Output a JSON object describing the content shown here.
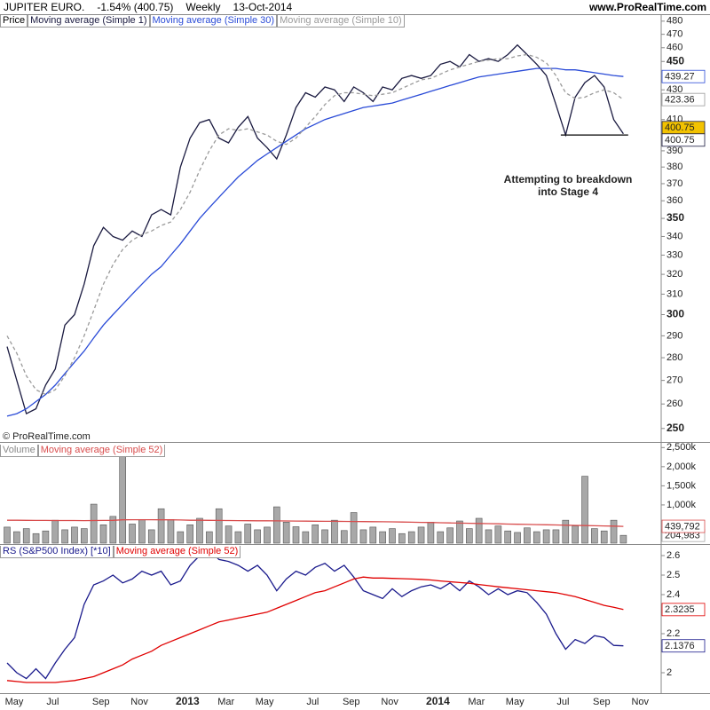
{
  "chart_data": [
    {
      "type": "line",
      "title": "JUPITER EURO.",
      "subtitle": "-1.54% (400.75)",
      "period": "Weekly",
      "date": "13-Oct-2014",
      "source": "www.ProRealTime.com",
      "panel_label": "Price",
      "copyright": "© ProRealTime.com",
      "annotation": [
        "Attempting to breakdown",
        "into Stage 4"
      ],
      "support": 400,
      "log_scale": true,
      "ylim": [
        245,
        484
      ],
      "yticks": [
        250,
        260,
        270,
        280,
        290,
        300,
        310,
        320,
        330,
        340,
        350,
        360,
        370,
        380,
        390,
        410,
        430,
        450,
        460,
        470,
        480
      ],
      "series": [
        {
          "name": "Moving average (Simple 1)",
          "color": "#1a1a40",
          "values": [
            285,
            270,
            256,
            258,
            268,
            275,
            295,
            300,
            315,
            335,
            345,
            340,
            338,
            343,
            340,
            352,
            355,
            352,
            380,
            398,
            408,
            410,
            398,
            395,
            405,
            412,
            398,
            392,
            385,
            400,
            418,
            428,
            425,
            432,
            430,
            422,
            432,
            428,
            422,
            432,
            430,
            438,
            440,
            438,
            440,
            448,
            450,
            446,
            455,
            450,
            452,
            450,
            455,
            462,
            455,
            448,
            440,
            420,
            400,
            425,
            435,
            440,
            432,
            410,
            400.75,
            null
          ]
        },
        {
          "name": "Moving average (Simple 30)",
          "color": "#2a4bd7",
          "values": [
            255,
            256,
            258,
            261,
            264,
            268,
            273,
            278,
            283,
            289,
            295,
            300,
            305,
            310,
            315,
            320,
            324,
            330,
            336,
            343,
            350,
            356,
            362,
            368,
            374,
            379,
            384,
            388,
            392,
            396,
            400,
            404,
            407,
            410,
            412,
            414,
            416,
            418,
            419,
            420,
            421,
            423,
            425,
            427,
            429,
            431,
            433,
            435,
            437,
            439,
            440,
            441,
            442,
            443,
            444,
            445,
            445,
            445,
            444,
            444,
            443,
            442,
            441,
            440,
            439.27,
            null
          ]
        },
        {
          "name": "Moving average (Simple 10)",
          "color": "#9a9a9a",
          "dash": true,
          "values": [
            290,
            282,
            272,
            266,
            264,
            266,
            272,
            280,
            290,
            302,
            315,
            325,
            333,
            338,
            341,
            343,
            346,
            348,
            355,
            365,
            378,
            390,
            400,
            404,
            403,
            404,
            402,
            400,
            396,
            394,
            398,
            405,
            412,
            420,
            426,
            428,
            428,
            427,
            426,
            427,
            428,
            431,
            434,
            437,
            438,
            441,
            444,
            446,
            448,
            450,
            451,
            452,
            452,
            454,
            455,
            453,
            449,
            440,
            428,
            424,
            425,
            428,
            430,
            428,
            423.36,
            null
          ]
        }
      ]
    },
    {
      "type": "bar",
      "panel_label": "Volume",
      "ylim": [
        0,
        2600000
      ],
      "yticks": [
        {
          "value": 1000000,
          "label": "1,000k"
        },
        {
          "value": 1500000,
          "label": "1,500k"
        },
        {
          "value": 2000000,
          "label": "2,000k"
        },
        {
          "value": 2500000,
          "label": "2,500k"
        }
      ],
      "series": [
        {
          "name": "Volume",
          "color": "#a8a8a8",
          "last_label": "204,983",
          "values": [
            420000,
            300000,
            380000,
            250000,
            320000,
            600000,
            350000,
            420000,
            380000,
            1020000,
            480000,
            700000,
            2550000,
            500000,
            620000,
            350000,
            900000,
            620000,
            300000,
            480000,
            650000,
            300000,
            900000,
            450000,
            300000,
            500000,
            350000,
            420000,
            950000,
            550000,
            430000,
            300000,
            480000,
            350000,
            600000,
            330000,
            800000,
            350000,
            420000,
            300000,
            380000,
            250000,
            300000,
            420000,
            550000,
            300000,
            400000,
            580000,
            380000,
            650000,
            350000,
            450000,
            320000,
            280000,
            400000,
            300000,
            350000,
            350000,
            600000,
            450000,
            1750000,
            380000,
            320000,
            600000,
            204983,
            null
          ]
        },
        {
          "name": "Moving average (Simple 52)",
          "color": "#d84c4c",
          "last_label": "439,792",
          "values": [
            600000,
            598000,
            596000,
            595000,
            594000,
            593000,
            592000,
            591000,
            590000,
            592000,
            594000,
            596000,
            610000,
            612000,
            613000,
            612000,
            611000,
            610000,
            605000,
            600000,
            598000,
            596000,
            594000,
            592000,
            590000,
            588000,
            586000,
            584000,
            582000,
            580000,
            578000,
            576000,
            574000,
            572000,
            570000,
            568000,
            566000,
            564000,
            562000,
            560000,
            556000,
            552000,
            548000,
            544000,
            540000,
            535000,
            530000,
            525000,
            520000,
            515000,
            510000,
            505000,
            500000,
            495000,
            490000,
            485000,
            480000,
            475000,
            470000,
            465000,
            460000,
            455000,
            450000,
            445000,
            439792,
            null
          ]
        }
      ]
    },
    {
      "type": "line",
      "ylim": [
        1.9,
        2.65
      ],
      "yticks": [
        2,
        2.2,
        2.4,
        2.5,
        2.6
      ],
      "categories": [
        "May",
        null,
        null,
        null,
        "Jul",
        null,
        null,
        null,
        null,
        "Sep",
        null,
        null,
        null,
        "Nov",
        null,
        null,
        null,
        null,
        "2013",
        null,
        null,
        null,
        "Mar",
        null,
        null,
        null,
        "May",
        null,
        null,
        null,
        null,
        "Jul",
        null,
        null,
        null,
        "Sep",
        null,
        null,
        null,
        "Nov",
        null,
        null,
        null,
        null,
        "2014",
        null,
        null,
        null,
        "Mar",
        null,
        null,
        null,
        "May",
        null,
        null,
        null,
        null,
        "Jul",
        null,
        null,
        null,
        "Sep",
        null,
        null,
        null,
        "Nov"
      ],
      "series": [
        {
          "name": "RS (S&P500 Index) [*10]",
          "color": "#1a1a8c",
          "values": [
            2.05,
            2.0,
            1.97,
            2.02,
            1.97,
            2.05,
            2.12,
            2.18,
            2.35,
            2.45,
            2.47,
            2.5,
            2.46,
            2.48,
            2.52,
            2.5,
            2.52,
            2.45,
            2.47,
            2.55,
            2.6,
            2.63,
            2.58,
            2.57,
            2.55,
            2.52,
            2.55,
            2.5,
            2.42,
            2.48,
            2.52,
            2.5,
            2.54,
            2.56,
            2.52,
            2.55,
            2.49,
            2.42,
            2.4,
            2.38,
            2.43,
            2.39,
            2.42,
            2.44,
            2.45,
            2.43,
            2.46,
            2.42,
            2.47,
            2.44,
            2.4,
            2.43,
            2.4,
            2.42,
            2.41,
            2.36,
            2.3,
            2.2,
            2.12,
            2.17,
            2.15,
            2.19,
            2.18,
            2.14,
            2.1376,
            null
          ]
        },
        {
          "name": "Moving average (Simple 52)",
          "color": "#e00000",
          "values": [
            1.96,
            1.955,
            1.95,
            1.95,
            1.95,
            1.95,
            1.955,
            1.96,
            1.97,
            1.98,
            2.0,
            2.02,
            2.04,
            2.07,
            2.09,
            2.11,
            2.14,
            2.16,
            2.18,
            2.2,
            2.22,
            2.24,
            2.26,
            2.27,
            2.28,
            2.29,
            2.3,
            2.31,
            2.33,
            2.35,
            2.37,
            2.39,
            2.41,
            2.42,
            2.44,
            2.46,
            2.48,
            2.49,
            2.485,
            2.485,
            2.483,
            2.482,
            2.48,
            2.478,
            2.475,
            2.47,
            2.466,
            2.462,
            2.458,
            2.452,
            2.446,
            2.44,
            2.435,
            2.43,
            2.425,
            2.42,
            2.415,
            2.41,
            2.4,
            2.39,
            2.375,
            2.36,
            2.345,
            2.335,
            2.3235,
            null
          ]
        }
      ]
    }
  ]
}
